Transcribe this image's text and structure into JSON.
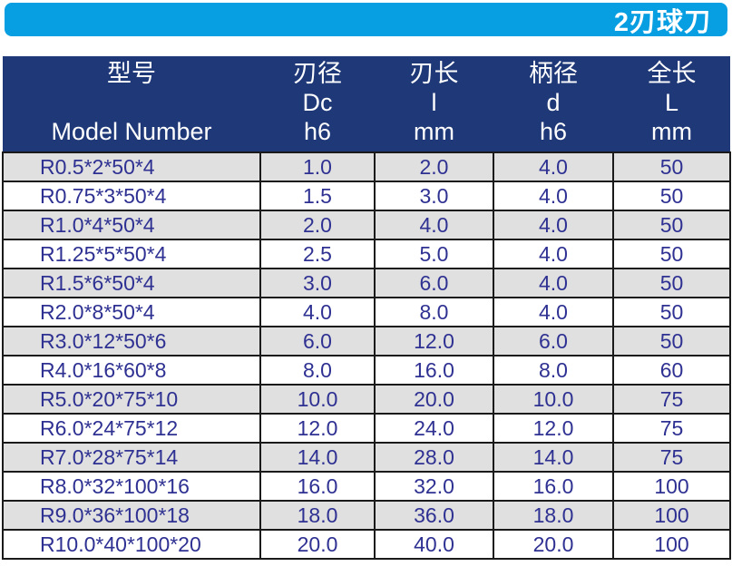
{
  "banner": {
    "title": "2刃球刀"
  },
  "colors": {
    "banner_background": "#089EE2",
    "header_background": "#1F3877",
    "stripe_row": "#E0E0E0",
    "cell_text": "#2E3192",
    "grid_border": "#1A1A1A",
    "header_text": "#FFFFFF",
    "banner_text": "#FFFFFF"
  },
  "table": {
    "columns": [
      {
        "name": "型号",
        "symbol": "",
        "unit": "Model Number"
      },
      {
        "name": "刃径",
        "symbol": "Dc",
        "unit": "h6"
      },
      {
        "name": "刃长",
        "symbol": "l",
        "unit": "mm"
      },
      {
        "name": "柄径",
        "symbol": "d",
        "unit": "h6"
      },
      {
        "name": "全长",
        "symbol": "L",
        "unit": "mm"
      }
    ],
    "rows": [
      [
        "R0.5*2*50*4",
        "1.0",
        "2.0",
        "4.0",
        "50"
      ],
      [
        "R0.75*3*50*4",
        "1.5",
        "3.0",
        "4.0",
        "50"
      ],
      [
        "R1.0*4*50*4",
        "2.0",
        "4.0",
        "4.0",
        "50"
      ],
      [
        "R1.25*5*50*4",
        "2.5",
        "5.0",
        "4.0",
        "50"
      ],
      [
        "R1.5*6*50*4",
        "3.0",
        "6.0",
        "4.0",
        "50"
      ],
      [
        "R2.0*8*50*4",
        "4.0",
        "8.0",
        "4.0",
        "50"
      ],
      [
        "R3.0*12*50*6",
        "6.0",
        "12.0",
        "6.0",
        "50"
      ],
      [
        "R4.0*16*60*8",
        "8.0",
        "16.0",
        "8.0",
        "60"
      ],
      [
        "R5.0*20*75*10",
        "10.0",
        "20.0",
        "10.0",
        "75"
      ],
      [
        "R6.0*24*75*12",
        "12.0",
        "24.0",
        "12.0",
        "75"
      ],
      [
        "R7.0*28*75*14",
        "14.0",
        "28.0",
        "14.0",
        "75"
      ],
      [
        "R8.0*32*100*16",
        "16.0",
        "32.0",
        "16.0",
        "100"
      ],
      [
        "R9.0*36*100*18",
        "18.0",
        "36.0",
        "18.0",
        "100"
      ],
      [
        "R10.0*40*100*20",
        "20.0",
        "40.0",
        "20.0",
        "100"
      ]
    ]
  }
}
